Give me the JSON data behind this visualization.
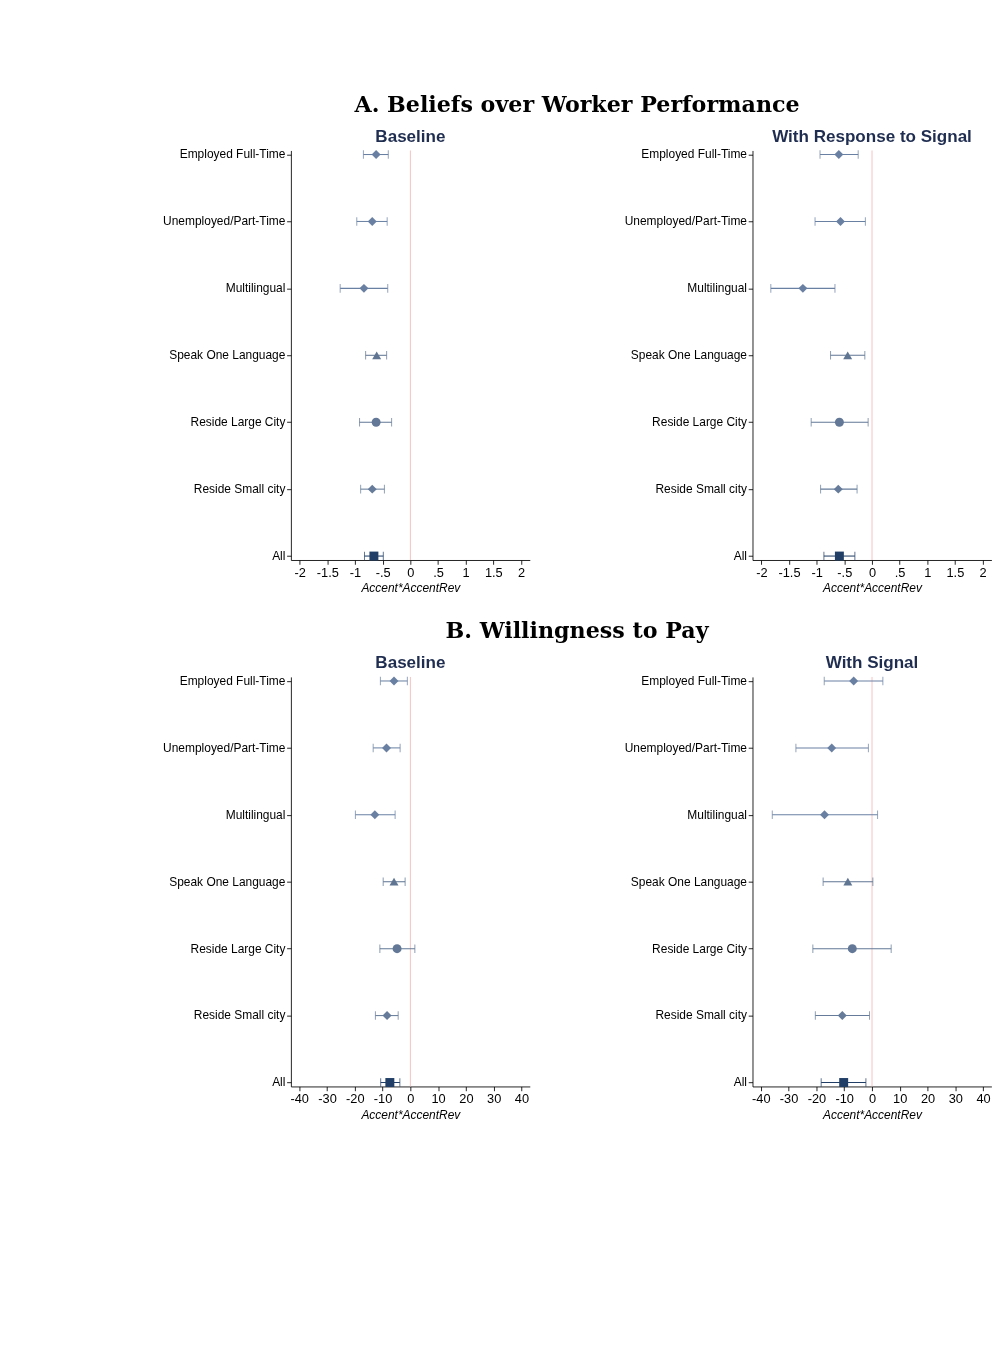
{
  "chart_data": [
    {
      "type": "scatter",
      "orientation": "horizontal",
      "title": "Baseline",
      "xlabel": "Accent*AccentRev",
      "annotations": [
        "A. Beliefs over Worker Performance"
      ],
      "categories": [
        "Employed Full-Time",
        "Unemployed/Part-Time",
        "Multilingual",
        "Speak One Language",
        "Reside Large City",
        "Reside Small city",
        "All"
      ],
      "xlim": [
        -2.16,
        2.16
      ],
      "xticks": [
        -2,
        {
          "value": -1.5,
          "label": "-1.5"
        },
        -1,
        {
          "value": -0.5,
          "label": "-.5"
        },
        0,
        {
          "value": 0.5,
          "label": ".5"
        },
        1,
        {
          "value": 1.5,
          "label": "1.5"
        },
        2
      ],
      "grid": false,
      "legend": false,
      "ref_lines": [
        {
          "axis": "x",
          "value": 0,
          "color": "#f4b8b8"
        }
      ],
      "series": [
        {
          "marker": "diamond",
          "color": "#6a80a3",
          "values": [
            -0.62,
            -0.69,
            -0.84,
            null,
            null,
            null,
            null
          ],
          "errors": [
            [
              -0.85,
              -0.4
            ],
            [
              -0.97,
              -0.42
            ],
            [
              -1.27,
              -0.41
            ],
            null,
            null,
            null,
            null
          ]
        },
        {
          "marker": "triangle",
          "color": "#5f7592",
          "values": [
            null,
            null,
            null,
            -0.61,
            null,
            null,
            null
          ],
          "errors": [
            null,
            null,
            null,
            [
              -0.81,
              -0.43
            ],
            null,
            null,
            null
          ]
        },
        {
          "marker": "circle",
          "color": "#627896",
          "values": [
            null,
            null,
            null,
            null,
            -0.62,
            null,
            null
          ],
          "errors": [
            null,
            null,
            null,
            null,
            [
              -0.92,
              -0.34
            ],
            null,
            null
          ]
        },
        {
          "marker": "diamond",
          "color": "#657b99",
          "values": [
            null,
            null,
            null,
            null,
            null,
            -0.69,
            null
          ],
          "errors": [
            null,
            null,
            null,
            null,
            null,
            [
              -0.9,
              -0.47
            ],
            null
          ]
        },
        {
          "marker": "square",
          "color": "#213f66",
          "values": [
            null,
            null,
            null,
            null,
            null,
            null,
            -0.66
          ],
          "errors": [
            null,
            null,
            null,
            null,
            null,
            null,
            [
              -0.83,
              -0.49
            ]
          ]
        }
      ]
    },
    {
      "type": "scatter",
      "orientation": "horizontal",
      "title": "With Response to Signal",
      "xlabel": "Accent*AccentRev",
      "categories": [
        "Employed Full-Time",
        "Unemployed/Part-Time",
        "Multilingual",
        "Speak One Language",
        "Reside Large City",
        "Reside Small city",
        "All"
      ],
      "xlim": [
        -2.16,
        2.16
      ],
      "xticks": [
        -2,
        {
          "value": -1.5,
          "label": "-1.5"
        },
        -1,
        {
          "value": -0.5,
          "label": "-.5"
        },
        0,
        {
          "value": 0.5,
          "label": ".5"
        },
        1,
        {
          "value": 1.5,
          "label": "1.5"
        },
        2
      ],
      "grid": false,
      "legend": false,
      "ref_lines": [
        {
          "axis": "x",
          "value": 0,
          "color": "#f4b8b8"
        }
      ],
      "series": [
        {
          "marker": "diamond",
          "color": "#6a80a3",
          "values": [
            -0.6,
            -0.57,
            -1.25,
            null,
            null,
            null,
            null
          ],
          "errors": [
            [
              -0.94,
              -0.25
            ],
            [
              -1.03,
              -0.12
            ],
            [
              -1.83,
              -0.67
            ],
            null,
            null,
            null,
            null
          ]
        },
        {
          "marker": "triangle",
          "color": "#5f7592",
          "values": [
            null,
            null,
            null,
            -0.44,
            null,
            null,
            null
          ],
          "errors": [
            null,
            null,
            null,
            [
              -0.75,
              -0.13
            ],
            null,
            null,
            null
          ]
        },
        {
          "marker": "circle",
          "color": "#627896",
          "values": [
            null,
            null,
            null,
            null,
            -0.59,
            null,
            null
          ],
          "errors": [
            null,
            null,
            null,
            null,
            [
              -1.1,
              -0.07
            ],
            null,
            null
          ]
        },
        {
          "marker": "diamond",
          "color": "#657b99",
          "values": [
            null,
            null,
            null,
            null,
            null,
            -0.61,
            null
          ],
          "errors": [
            null,
            null,
            null,
            null,
            null,
            [
              -0.93,
              -0.27
            ],
            null
          ]
        },
        {
          "marker": "square",
          "color": "#213f66",
          "values": [
            null,
            null,
            null,
            null,
            null,
            null,
            -0.59
          ],
          "errors": [
            null,
            null,
            null,
            null,
            null,
            null,
            [
              -0.87,
              -0.31
            ]
          ]
        }
      ]
    },
    {
      "type": "scatter",
      "orientation": "horizontal",
      "title": "Baseline",
      "xlabel": "Accent*AccentRev",
      "annotations": [
        "B. Willingness to Pay"
      ],
      "categories": [
        "Employed Full-Time",
        "Unemployed/Part-Time",
        "Multilingual",
        "Speak One Language",
        "Reside Large City",
        "Reside Small city",
        "All"
      ],
      "xlim": [
        -43,
        43
      ],
      "xticks": [
        -40,
        -30,
        -20,
        -10,
        0,
        10,
        20,
        30,
        40
      ],
      "grid": false,
      "legend": false,
      "ref_lines": [
        {
          "axis": "x",
          "value": 0,
          "color": "#f4b8b8"
        }
      ],
      "series": [
        {
          "marker": "diamond",
          "color": "#6a80a3",
          "values": [
            -5.9,
            -8.6,
            -12.8,
            null,
            null,
            null,
            null
          ],
          "errors": [
            [
              -10.8,
              -1.1
            ],
            [
              -13.4,
              -3.7
            ],
            [
              -19.8,
              -5.5
            ],
            null,
            null,
            null,
            null
          ]
        },
        {
          "marker": "triangle",
          "color": "#5f7592",
          "values": [
            null,
            null,
            null,
            -5.9,
            null,
            null,
            null
          ],
          "errors": [
            null,
            null,
            null,
            [
              -9.8,
              -1.9
            ],
            null,
            null,
            null
          ]
        },
        {
          "marker": "circle",
          "color": "#627896",
          "values": [
            null,
            null,
            null,
            null,
            -4.8,
            null,
            null
          ],
          "errors": [
            null,
            null,
            null,
            null,
            [
              -11.0,
              1.6
            ],
            null,
            null
          ]
        },
        {
          "marker": "diamond",
          "color": "#657b99",
          "values": [
            null,
            null,
            null,
            null,
            null,
            -8.4,
            null
          ],
          "errors": [
            null,
            null,
            null,
            null,
            null,
            [
              -12.6,
              -4.4
            ],
            null
          ]
        },
        {
          "marker": "square",
          "color": "#213f66",
          "values": [
            null,
            null,
            null,
            null,
            null,
            null,
            -7.4
          ],
          "errors": [
            null,
            null,
            null,
            null,
            null,
            null,
            [
              -10.7,
              -3.8
            ]
          ]
        }
      ]
    },
    {
      "type": "scatter",
      "orientation": "horizontal",
      "title": "With Signal",
      "xlabel": "Accent*AccentRev",
      "categories": [
        "Employed Full-Time",
        "Unemployed/Part-Time",
        "Multilingual",
        "Speak One Language",
        "Reside Large City",
        "Reside Small city",
        "All"
      ],
      "xlim": [
        -43,
        43
      ],
      "xticks": [
        -40,
        -30,
        -20,
        -10,
        0,
        10,
        20,
        30,
        40
      ],
      "grid": false,
      "legend": false,
      "ref_lines": [
        {
          "axis": "x",
          "value": 0,
          "color": "#f4b8b8"
        }
      ],
      "series": [
        {
          "marker": "diamond",
          "color": "#6a80a3",
          "values": [
            -6.6,
            -14.5,
            -17.1,
            null,
            null,
            null,
            null
          ],
          "errors": [
            [
              -17.2,
              3.9
            ],
            [
              -27.4,
              -1.3
            ],
            [
              -35.9,
              2.0
            ],
            null,
            null,
            null,
            null
          ]
        },
        {
          "marker": "triangle",
          "color": "#5f7592",
          "values": [
            null,
            null,
            null,
            -8.7,
            null,
            null,
            null
          ],
          "errors": [
            null,
            null,
            null,
            [
              -17.6,
              0.3
            ],
            null,
            null,
            null
          ]
        },
        {
          "marker": "circle",
          "color": "#627896",
          "values": [
            null,
            null,
            null,
            null,
            -7.1,
            null,
            null
          ],
          "errors": [
            null,
            null,
            null,
            null,
            [
              -21.3,
              6.9
            ],
            null,
            null
          ]
        },
        {
          "marker": "diamond",
          "color": "#657b99",
          "values": [
            null,
            null,
            null,
            null,
            null,
            -10.7,
            null
          ],
          "errors": [
            null,
            null,
            null,
            null,
            null,
            [
              -20.4,
              -0.9
            ],
            null
          ]
        },
        {
          "marker": "square",
          "color": "#213f66",
          "values": [
            null,
            null,
            null,
            null,
            null,
            null,
            -10.2
          ],
          "errors": [
            null,
            null,
            null,
            null,
            null,
            null,
            [
              -18.3,
              -2.2
            ]
          ]
        }
      ]
    }
  ]
}
